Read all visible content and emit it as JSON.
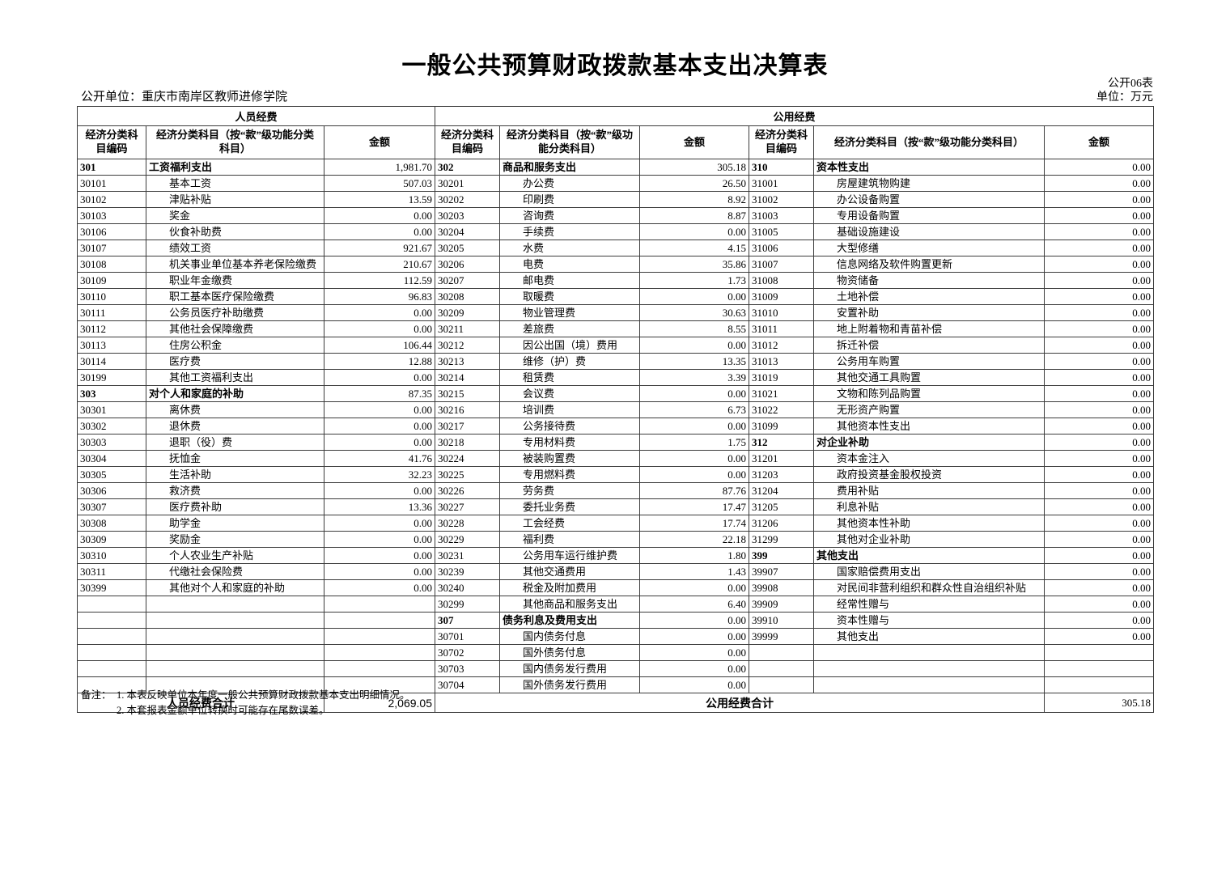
{
  "header": {
    "title": "一般公共预算财政拨款基本支出决算表",
    "form_code": "公开06表",
    "unit": "单位：万元",
    "org": "公开单位：重庆市南岸区教师进修学院"
  },
  "table": {
    "group_personnel": "人员经费",
    "group_public": "公用经费",
    "columns": {
      "code": "经济分类科目编码",
      "subject": "经济分类科目（按“款”级功能分类科目）",
      "amount": "金额"
    },
    "rows": [
      [
        {
          "code": "301",
          "name": "工资福利支出",
          "amount": "1,981.70",
          "bold": true
        },
        {
          "code": "302",
          "name": "商品和服务支出",
          "amount": "305.18",
          "bold": true
        },
        {
          "code": "310",
          "name": "资本性支出",
          "amount": "0.00",
          "bold": true
        }
      ],
      [
        {
          "code": "30101",
          "name": "基本工资",
          "amount": "507.03"
        },
        {
          "code": "30201",
          "name": "办公费",
          "amount": "26.50"
        },
        {
          "code": "31001",
          "name": "房屋建筑物购建",
          "amount": "0.00"
        }
      ],
      [
        {
          "code": "30102",
          "name": "津贴补贴",
          "amount": "13.59"
        },
        {
          "code": "30202",
          "name": "印刷费",
          "amount": "8.92"
        },
        {
          "code": "31002",
          "name": "办公设备购置",
          "amount": "0.00"
        }
      ],
      [
        {
          "code": "30103",
          "name": "奖金",
          "amount": "0.00"
        },
        {
          "code": "30203",
          "name": "咨询费",
          "amount": "8.87"
        },
        {
          "code": "31003",
          "name": "专用设备购置",
          "amount": "0.00"
        }
      ],
      [
        {
          "code": "30106",
          "name": "伙食补助费",
          "amount": "0.00"
        },
        {
          "code": "30204",
          "name": "手续费",
          "amount": "0.00"
        },
        {
          "code": "31005",
          "name": "基础设施建设",
          "amount": "0.00"
        }
      ],
      [
        {
          "code": "30107",
          "name": "绩效工资",
          "amount": "921.67"
        },
        {
          "code": "30205",
          "name": "水费",
          "amount": "4.15"
        },
        {
          "code": "31006",
          "name": "大型修缮",
          "amount": "0.00"
        }
      ],
      [
        {
          "code": "30108",
          "name": "机关事业单位基本养老保险缴费",
          "amount": "210.67"
        },
        {
          "code": "30206",
          "name": "电费",
          "amount": "35.86"
        },
        {
          "code": "31007",
          "name": "信息网络及软件购置更新",
          "amount": "0.00"
        }
      ],
      [
        {
          "code": "30109",
          "name": "职业年金缴费",
          "amount": "112.59"
        },
        {
          "code": "30207",
          "name": "邮电费",
          "amount": "1.73"
        },
        {
          "code": "31008",
          "name": "物资储备",
          "amount": "0.00"
        }
      ],
      [
        {
          "code": "30110",
          "name": "职工基本医疗保险缴费",
          "amount": "96.83"
        },
        {
          "code": "30208",
          "name": "取暖费",
          "amount": "0.00"
        },
        {
          "code": "31009",
          "name": "土地补偿",
          "amount": "0.00"
        }
      ],
      [
        {
          "code": "30111",
          "name": "公务员医疗补助缴费",
          "amount": "0.00"
        },
        {
          "code": "30209",
          "name": "物业管理费",
          "amount": "30.63"
        },
        {
          "code": "31010",
          "name": "安置补助",
          "amount": "0.00"
        }
      ],
      [
        {
          "code": "30112",
          "name": "其他社会保障缴费",
          "amount": "0.00"
        },
        {
          "code": "30211",
          "name": "差旅费",
          "amount": "8.55"
        },
        {
          "code": "31011",
          "name": "地上附着物和青苗补偿",
          "amount": "0.00"
        }
      ],
      [
        {
          "code": "30113",
          "name": "住房公积金",
          "amount": "106.44"
        },
        {
          "code": "30212",
          "name": "因公出国（境）费用",
          "amount": "0.00"
        },
        {
          "code": "31012",
          "name": "拆迁补偿",
          "amount": "0.00"
        }
      ],
      [
        {
          "code": "30114",
          "name": "医疗费",
          "amount": "12.88"
        },
        {
          "code": "30213",
          "name": "维修（护）费",
          "amount": "13.35"
        },
        {
          "code": "31013",
          "name": "公务用车购置",
          "amount": "0.00"
        }
      ],
      [
        {
          "code": "30199",
          "name": "其他工资福利支出",
          "amount": "0.00"
        },
        {
          "code": "30214",
          "name": "租赁费",
          "amount": "3.39"
        },
        {
          "code": "31019",
          "name": "其他交通工具购置",
          "amount": "0.00"
        }
      ],
      [
        {
          "code": "303",
          "name": "对个人和家庭的补助",
          "amount": "87.35",
          "bold": true
        },
        {
          "code": "30215",
          "name": "会议费",
          "amount": "0.00"
        },
        {
          "code": "31021",
          "name": "文物和陈列品购置",
          "amount": "0.00"
        }
      ],
      [
        {
          "code": "30301",
          "name": "离休费",
          "amount": "0.00"
        },
        {
          "code": "30216",
          "name": "培训费",
          "amount": "6.73"
        },
        {
          "code": "31022",
          "name": "无形资产购置",
          "amount": "0.00"
        }
      ],
      [
        {
          "code": "30302",
          "name": "退休费",
          "amount": "0.00"
        },
        {
          "code": "30217",
          "name": "公务接待费",
          "amount": "0.00"
        },
        {
          "code": "31099",
          "name": "其他资本性支出",
          "amount": "0.00"
        }
      ],
      [
        {
          "code": "30303",
          "name": "退职（役）费",
          "amount": "0.00"
        },
        {
          "code": "30218",
          "name": "专用材料费",
          "amount": "1.75"
        },
        {
          "code": "312",
          "name": "对企业补助",
          "amount": "0.00",
          "bold": true
        }
      ],
      [
        {
          "code": "30304",
          "name": "抚恤金",
          "amount": "41.76"
        },
        {
          "code": "30224",
          "name": "被装购置费",
          "amount": "0.00"
        },
        {
          "code": "31201",
          "name": "资本金注入",
          "amount": "0.00"
        }
      ],
      [
        {
          "code": "30305",
          "name": "生活补助",
          "amount": "32.23"
        },
        {
          "code": "30225",
          "name": "专用燃料费",
          "amount": "0.00"
        },
        {
          "code": "31203",
          "name": "政府投资基金股权投资",
          "amount": "0.00"
        }
      ],
      [
        {
          "code": "30306",
          "name": "救济费",
          "amount": "0.00"
        },
        {
          "code": "30226",
          "name": "劳务费",
          "amount": "87.76"
        },
        {
          "code": "31204",
          "name": "费用补贴",
          "amount": "0.00"
        }
      ],
      [
        {
          "code": "30307",
          "name": "医疗费补助",
          "amount": "13.36"
        },
        {
          "code": "30227",
          "name": "委托业务费",
          "amount": "17.47"
        },
        {
          "code": "31205",
          "name": "利息补贴",
          "amount": "0.00"
        }
      ],
      [
        {
          "code": "30308",
          "name": "助学金",
          "amount": "0.00"
        },
        {
          "code": "30228",
          "name": "工会经费",
          "amount": "17.74"
        },
        {
          "code": "31206",
          "name": "其他资本性补助",
          "amount": "0.00"
        }
      ],
      [
        {
          "code": "30309",
          "name": "奖励金",
          "amount": "0.00"
        },
        {
          "code": "30229",
          "name": "福利费",
          "amount": "22.18"
        },
        {
          "code": "31299",
          "name": "其他对企业补助",
          "amount": "0.00"
        }
      ],
      [
        {
          "code": "30310",
          "name": "个人农业生产补贴",
          "amount": "0.00"
        },
        {
          "code": "30231",
          "name": "公务用车运行维护费",
          "amount": "1.80"
        },
        {
          "code": "399",
          "name": "其他支出",
          "amount": "0.00",
          "bold": true
        }
      ],
      [
        {
          "code": "30311",
          "name": "代缴社会保险费",
          "amount": "0.00"
        },
        {
          "code": "30239",
          "name": "其他交通费用",
          "amount": "1.43"
        },
        {
          "code": "39907",
          "name": "国家赔偿费用支出",
          "amount": "0.00"
        }
      ],
      [
        {
          "code": "30399",
          "name": "其他对个人和家庭的补助",
          "amount": "0.00"
        },
        {
          "code": "30240",
          "name": "税金及附加费用",
          "amount": "0.00"
        },
        {
          "code": "39908",
          "name": "对民间非营利组织和群众性自治组织补贴",
          "amount": "0.00"
        }
      ],
      [
        null,
        {
          "code": "30299",
          "name": "其他商品和服务支出",
          "amount": "6.40"
        },
        {
          "code": "39909",
          "name": "经常性赠与",
          "amount": "0.00"
        }
      ],
      [
        null,
        {
          "code": "307",
          "name": "债务利息及费用支出",
          "amount": "0.00",
          "bold": true
        },
        {
          "code": "39910",
          "name": "资本性赠与",
          "amount": "0.00"
        }
      ],
      [
        null,
        {
          "code": "30701",
          "name": "国内债务付息",
          "amount": "0.00"
        },
        {
          "code": "39999",
          "name": "其他支出",
          "amount": "0.00"
        }
      ],
      [
        null,
        {
          "code": "30702",
          "name": "国外债务付息",
          "amount": "0.00"
        },
        null
      ],
      [
        null,
        {
          "code": "30703",
          "name": "国内债务发行费用",
          "amount": "0.00"
        },
        null
      ],
      [
        null,
        {
          "code": "30704",
          "name": "国外债务发行费用",
          "amount": "0.00"
        },
        null
      ]
    ]
  },
  "footer": {
    "personnel_total_label": "人员经费合计",
    "personnel_total": "2,069.05",
    "public_total_label": "公用经费合计",
    "public_total": "305.18"
  },
  "notes": {
    "label": "备注：",
    "line1": "1. 本表反映单位本年度一般公共预算财政拨款基本支出明细情况。",
    "line2": "2. 本套报表金额单位转换时可能存在尾数误差。"
  }
}
